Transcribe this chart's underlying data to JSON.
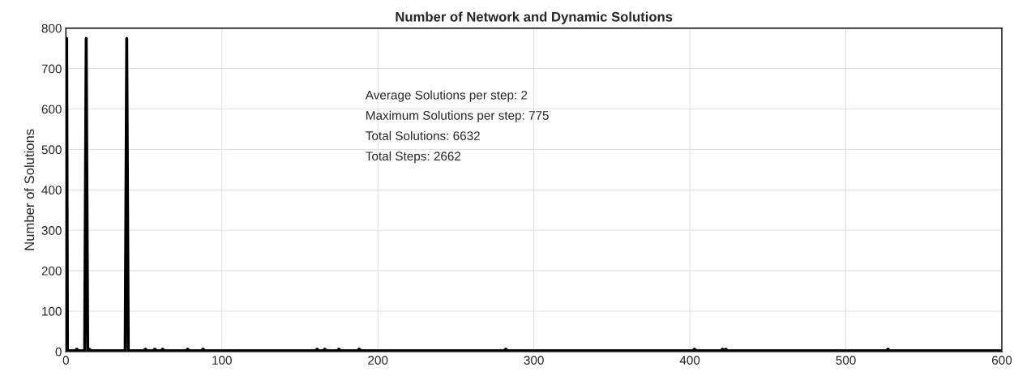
{
  "chart_data": {
    "type": "line",
    "title": "Number of Network and Dynamic Solutions",
    "ylabel": "Number of Solutions",
    "series": [
      {
        "color": "#000000",
        "x": [
          0,
          0.5,
          1,
          6,
          7,
          8,
          12,
          13,
          14,
          15,
          16,
          38,
          39,
          40,
          50,
          51,
          52,
          56,
          57,
          58,
          61,
          62,
          63,
          77,
          78,
          79,
          87,
          88,
          89,
          160,
          161,
          162,
          165,
          166,
          167,
          174,
          175,
          176,
          187,
          188,
          189,
          281,
          282,
          283,
          402,
          403,
          404,
          420,
          421,
          422,
          423,
          424,
          526,
          527,
          528,
          600
        ],
        "values": [
          2,
          775,
          2,
          2,
          6,
          2,
          2,
          775,
          2,
          6,
          2,
          2,
          775,
          2,
          2,
          6,
          2,
          2,
          6,
          2,
          2,
          6,
          2,
          2,
          6,
          2,
          2,
          6,
          2,
          2,
          6,
          2,
          2,
          6,
          2,
          2,
          6,
          2,
          2,
          6,
          2,
          2,
          6,
          2,
          2,
          6,
          2,
          2,
          6,
          2,
          6,
          2,
          2,
          6,
          2,
          2
        ]
      }
    ],
    "xlim": [
      0,
      600
    ],
    "xticks": [
      0,
      100,
      200,
      300,
      400,
      500,
      600
    ],
    "ylim": [
      0,
      800
    ],
    "yticks": [
      0,
      100,
      200,
      300,
      400,
      500,
      600,
      700,
      800
    ],
    "grid": true,
    "annotations": [
      "Average Solutions per step: 2",
      "Maximum Solutions per step: 775",
      "Total Solutions: 6632",
      "Total Steps: 2662"
    ]
  }
}
